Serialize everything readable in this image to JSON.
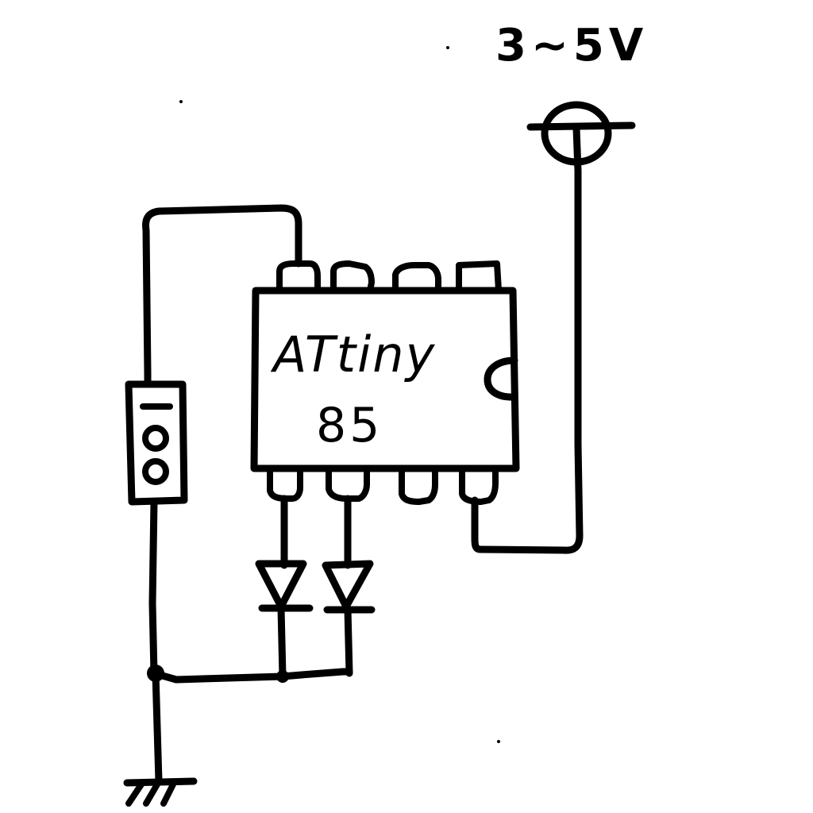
{
  "supply_label": "3∼5V",
  "chip": {
    "name_line1": "ATtiny",
    "name_line2": "85"
  },
  "colors": {
    "ink": "#000000",
    "paper": "#ffffff"
  }
}
